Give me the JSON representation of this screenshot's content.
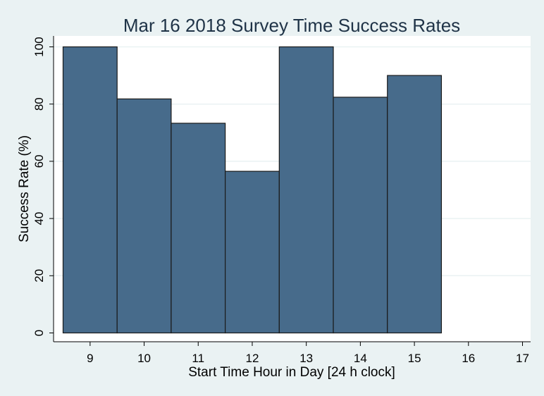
{
  "chart_data": {
    "type": "bar",
    "title": "Mar 16 2018 Survey Time Success Rates",
    "xlabel": "Start Time Hour in Day [24 h clock]",
    "ylabel": "Success Rate (%)",
    "x": [
      9,
      10,
      11,
      12,
      13,
      14,
      15
    ],
    "values": [
      100,
      81.8,
      73.3,
      56.5,
      100,
      82.4,
      90
    ],
    "xlim": [
      8.5,
      17.15
    ],
    "ylim": [
      0,
      100
    ],
    "x_ticks": [
      9,
      10,
      11,
      12,
      13,
      14,
      15,
      16,
      17
    ],
    "y_ticks": [
      0,
      20,
      40,
      60,
      80,
      100
    ],
    "grid": true,
    "bar_color": "#476b8b",
    "bar_edge_color": "#1a1a1a",
    "background_color": "#eaf2f3",
    "plot_background_color": "#ffffff",
    "grid_color": "#eaf2f3"
  }
}
